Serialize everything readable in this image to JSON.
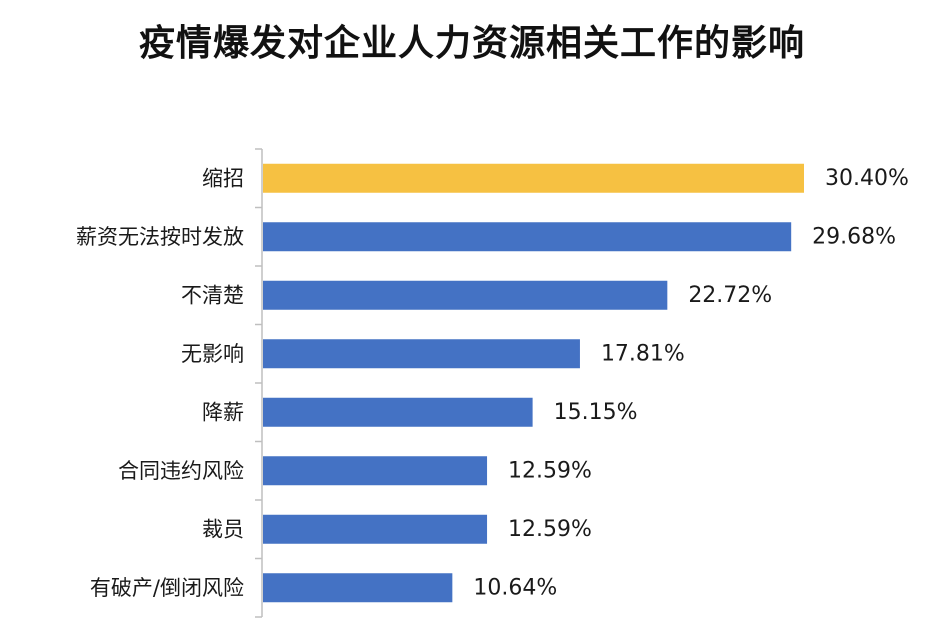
{
  "chart_data": {
    "type": "bar",
    "orientation": "horizontal",
    "title": "疫情爆发对企业人力资源相关工作的影响",
    "categories": [
      "缩招",
      "薪资无法按时发放",
      "不清楚",
      "无影响",
      "降薪",
      "合同违约风险",
      "裁员",
      "有破产/倒闭风险"
    ],
    "values": [
      30.4,
      29.68,
      22.72,
      17.81,
      15.15,
      12.59,
      12.59,
      10.64
    ],
    "value_labels": [
      "30.40%",
      "29.68%",
      "22.72%",
      "17.81%",
      "15.15%",
      "12.59%",
      "12.59%",
      "10.64%"
    ],
    "unit": "%",
    "xlim": [
      0,
      30.4
    ],
    "xlabel": "",
    "ylabel": "",
    "grid": false,
    "legend": "none",
    "colors": {
      "highlight": "#F6C142",
      "default": "#4472C4",
      "axis": "#BFBFBF"
    },
    "highlight_index": 0
  }
}
